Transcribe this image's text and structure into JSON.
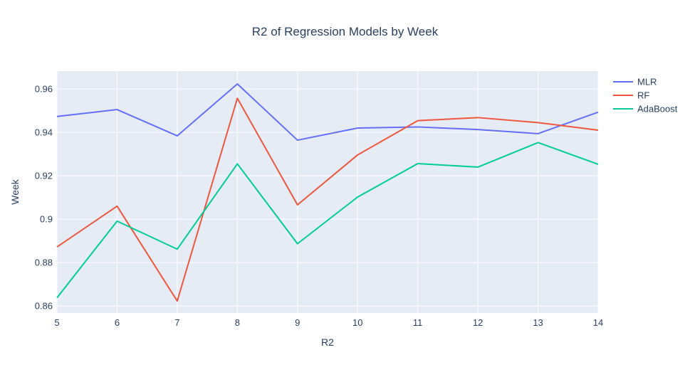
{
  "chart_data": {
    "type": "line",
    "title": "R2 of Regression Models by Week",
    "xlabel": "R2",
    "ylabel": "Week",
    "x": [
      5,
      6,
      7,
      8,
      9,
      10,
      11,
      12,
      13,
      14
    ],
    "xlim": [
      5,
      14
    ],
    "ylim": [
      0.8568,
      0.9682
    ],
    "xticks": [
      5,
      6,
      7,
      8,
      9,
      10,
      11,
      12,
      13,
      14
    ],
    "yticks": [
      0.86,
      0.88,
      0.9,
      0.92,
      0.94,
      0.96
    ],
    "ytick_labels": [
      "0.86",
      "0.88",
      "0.9",
      "0.92",
      "0.94",
      "0.96"
    ],
    "grid": true,
    "legend_position": "top-right",
    "series": [
      {
        "name": "MLR",
        "color": "#636efa",
        "values": [
          0.9473,
          0.9505,
          0.9384,
          0.9623,
          0.9364,
          0.942,
          0.9425,
          0.9413,
          0.9394,
          0.9493
        ]
      },
      {
        "name": "RF",
        "color": "#ef553b",
        "values": [
          0.8872,
          0.906,
          0.8623,
          0.9557,
          0.9066,
          0.9296,
          0.9454,
          0.9468,
          0.9445,
          0.941
        ]
      },
      {
        "name": "AdaBoost",
        "color": "#00cc96",
        "values": [
          0.8638,
          0.8991,
          0.8862,
          0.9255,
          0.8887,
          0.9102,
          0.9256,
          0.924,
          0.9353,
          0.9253
        ]
      }
    ]
  }
}
